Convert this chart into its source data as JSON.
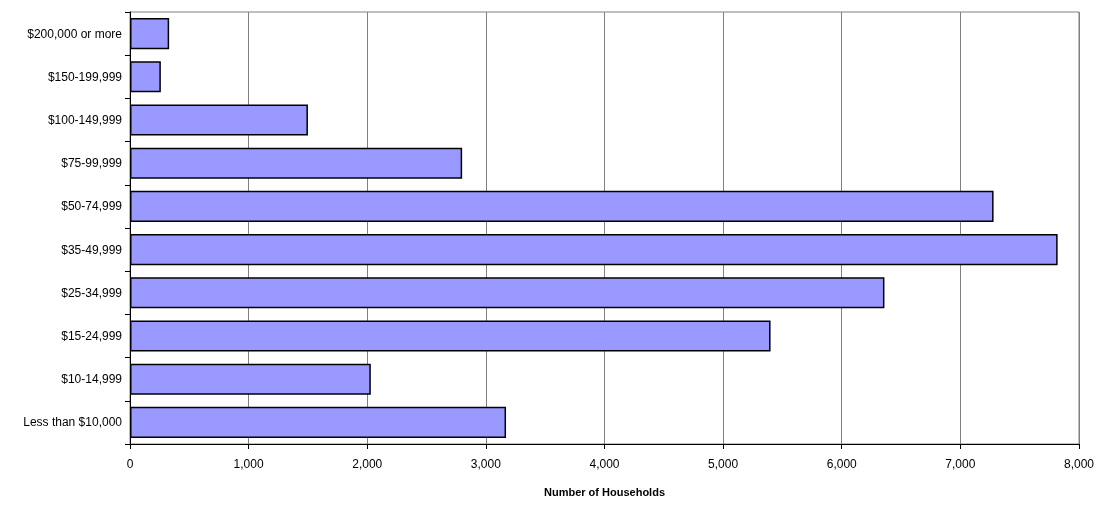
{
  "chart_data": {
    "type": "bar",
    "orientation": "horizontal",
    "xlabel": "Number of Households",
    "categories": [
      "$200,000 or more",
      "$150-199,999",
      "$100-149,999",
      "$75-99,999",
      "$50-74,999",
      "$35-49,999",
      "$25-34,999",
      "$15-24,999",
      "$10-14,999",
      "Less than $10,000"
    ],
    "values": [
      330,
      260,
      1500,
      2800,
      7280,
      7820,
      6360,
      5400,
      2030,
      3170
    ],
    "color": "#9999ff",
    "xlim": [
      0,
      8000
    ],
    "xticks": [
      0,
      {
        "value": 1000,
        "label": "1,000"
      },
      {
        "value": 2000,
        "label": "2,000"
      },
      {
        "value": 3000,
        "label": "3,000"
      },
      {
        "value": 4000,
        "label": "4,000"
      },
      {
        "value": 5000,
        "label": "5,000"
      },
      {
        "value": 6000,
        "label": "6,000"
      },
      {
        "value": 7000,
        "label": "7,000"
      },
      {
        "value": 8000,
        "label": "8,000"
      }
    ],
    "grid": "x"
  }
}
